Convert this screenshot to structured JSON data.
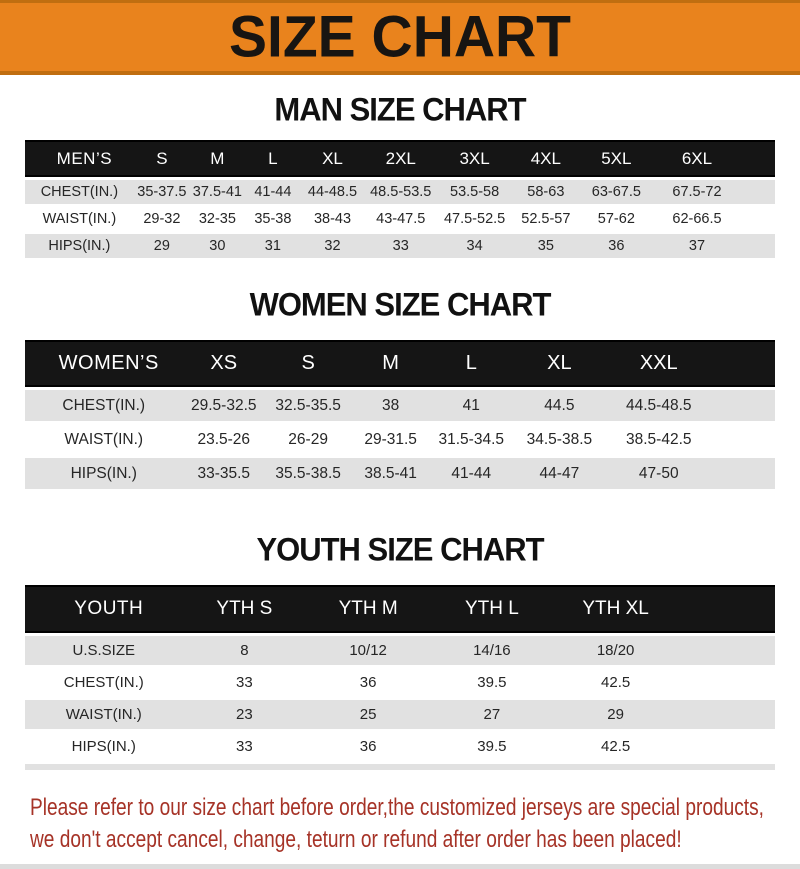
{
  "colors": {
    "banner-orange": "#E9831D",
    "banner-edge": "#C06E10",
    "bar-black": "#151515",
    "row-gray": "#E1E1E1",
    "heading-black": "#111111",
    "footer-red": "#A63327"
  },
  "banner": {
    "title": "SIZE CHART"
  },
  "sections": [
    {
      "heading": "MAN SIZE CHART",
      "header_label": "MEN’S",
      "columns": [
        "S",
        "M",
        "L",
        "XL",
        "2XL",
        "3XL",
        "4XL",
        "5XL",
        "6XL"
      ],
      "rows": [
        {
          "label": "CHEST(IN.)",
          "values": [
            "35-37.5",
            "37.5-41",
            "41-44",
            "44-48.5",
            "48.5-53.5",
            "53.5-58",
            "58-63",
            "63-67.5",
            "67.5-72"
          ]
        },
        {
          "label": "WAIST(IN.)",
          "values": [
            "29-32",
            "32-35",
            "35-38",
            "38-43",
            "43-47.5",
            "47.5-52.5",
            "52.5-57",
            "57-62",
            "62-66.5"
          ]
        },
        {
          "label": "HIPS(IN.)",
          "values": [
            "29",
            "30",
            "31",
            "32",
            "33",
            "34",
            "35",
            "36",
            "37"
          ]
        }
      ]
    },
    {
      "heading": "WOMEN SIZE CHART",
      "header_label": "WOMEN’S",
      "columns": [
        "XS",
        "S",
        "M",
        "L",
        "XL",
        "XXL"
      ],
      "rows": [
        {
          "label": "CHEST(IN.)",
          "values": [
            "29.5-32.5",
            "32.5-35.5",
            "38",
            "41",
            "44.5",
            "44.5-48.5"
          ]
        },
        {
          "label": "WAIST(IN.)",
          "values": [
            "23.5-26",
            "26-29",
            "29-31.5",
            "31.5-34.5",
            "34.5-38.5",
            "38.5-42.5"
          ]
        },
        {
          "label": "HIPS(IN.)",
          "values": [
            "33-35.5",
            "35.5-38.5",
            "38.5-41",
            "41-44",
            "44-47",
            "47-50"
          ]
        }
      ]
    },
    {
      "heading": "YOUTH SIZE CHART",
      "header_label": "YOUTH",
      "columns": [
        "YTH S",
        "YTH M",
        "YTH L",
        "YTH XL"
      ],
      "rows": [
        {
          "label": "U.S.SIZE",
          "values": [
            "8",
            "10/12",
            "14/16",
            "18/20"
          ]
        },
        {
          "label": "CHEST(IN.)",
          "values": [
            "33",
            "36",
            "39.5",
            "42.5"
          ]
        },
        {
          "label": "WAIST(IN.)",
          "values": [
            "23",
            "25",
            "27",
            "29"
          ]
        },
        {
          "label": "HIPS(IN.)",
          "values": [
            "33",
            "36",
            "39.5",
            "42.5"
          ]
        }
      ]
    }
  ],
  "footer": {
    "line1": "Please refer to our size chart before order,the customized jerseys are special products,",
    "line2": "we don't accept cancel, change, teturn or refund after order has been placed!"
  }
}
